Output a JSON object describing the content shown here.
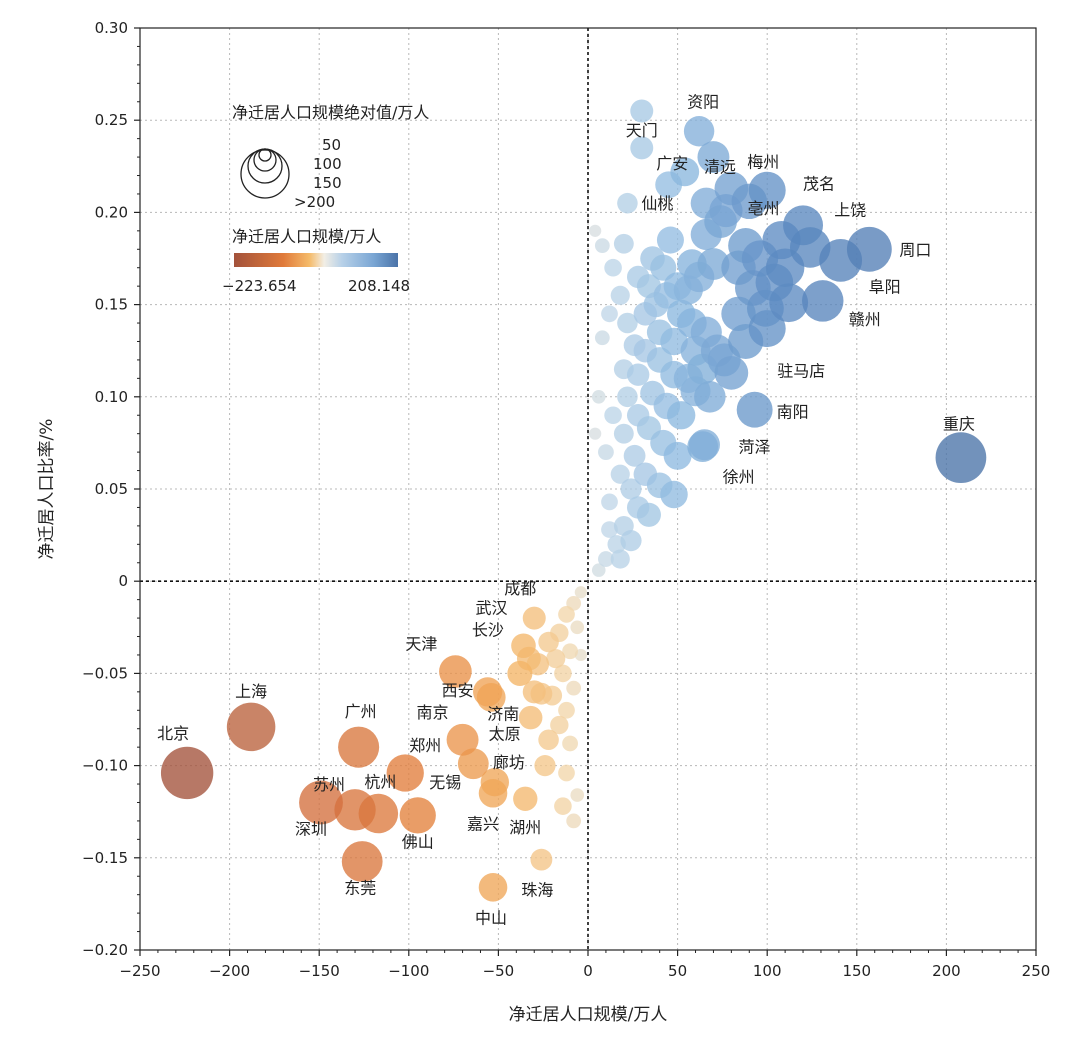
{
  "chart_data": {
    "type": "scatter",
    "xlabel": "净迁居人口规模/万人",
    "ylabel": "净迁居人口比率/%",
    "xlim": [
      -250,
      250
    ],
    "ylim": [
      -0.2,
      0.3
    ],
    "xticks": [
      "−250",
      "−200",
      "−150",
      "−100",
      "−50",
      "0",
      "50",
      "100",
      "150",
      "200",
      "250"
    ],
    "yticks": [
      "0.30",
      "0.25",
      "0.20",
      "0.15",
      "0.10",
      "0.05",
      "0",
      "−0.05",
      "−0.10",
      "−0.15",
      "−0.20"
    ],
    "grid": "dotted",
    "legend": {
      "size_title": "净迁居人口规模绝对值/万人",
      "size_values": [
        "50",
        "100",
        "150",
        ">200"
      ],
      "color_title": "净迁居人口规模/万人",
      "color_min": "−223.654",
      "color_max": "208.148",
      "colors": [
        "#a3523b",
        "#e07a3a",
        "#f5bb6a",
        "#f2eee5",
        "#b6d0e8",
        "#7aa6d4",
        "#4a73a8"
      ]
    },
    "labeled_points": [
      {
        "name": "北京",
        "x": -223.7,
        "y": -0.104
      },
      {
        "name": "上海",
        "x": -188,
        "y": -0.079
      },
      {
        "name": "广州",
        "x": -128,
        "y": -0.09
      },
      {
        "name": "郑州",
        "x": -102,
        "y": -0.104
      },
      {
        "name": "苏州",
        "x": -130,
        "y": -0.124
      },
      {
        "name": "杭州",
        "x": -117,
        "y": -0.126
      },
      {
        "name": "深圳",
        "x": -149,
        "y": -0.12
      },
      {
        "name": "佛山",
        "x": -95,
        "y": -0.127
      },
      {
        "name": "东莞",
        "x": -126,
        "y": -0.152
      },
      {
        "name": "天津",
        "x": -74,
        "y": -0.049
      },
      {
        "name": "西安",
        "x": -56,
        "y": -0.06
      },
      {
        "name": "南京",
        "x": -70,
        "y": -0.086
      },
      {
        "name": "无锡",
        "x": -64,
        "y": -0.099
      },
      {
        "name": "长沙",
        "x": -38,
        "y": -0.05
      },
      {
        "name": "武汉",
        "x": -36,
        "y": -0.035
      },
      {
        "name": "成都",
        "x": -30,
        "y": -0.02
      },
      {
        "name": "济南",
        "x": -54,
        "y": -0.063
      },
      {
        "name": "太原",
        "x": -32,
        "y": -0.074
      },
      {
        "name": "廊坊",
        "x": -52,
        "y": -0.109
      },
      {
        "name": "嘉兴",
        "x": -53,
        "y": -0.115
      },
      {
        "name": "湖州",
        "x": -35,
        "y": -0.118
      },
      {
        "name": "中山",
        "x": -53,
        "y": -0.166
      },
      {
        "name": "珠海",
        "x": -26,
        "y": -0.151
      },
      {
        "name": "资阳",
        "x": 62,
        "y": 0.244
      },
      {
        "name": "天门",
        "x": 30,
        "y": 0.235
      },
      {
        "name": "仙桃",
        "x": 22,
        "y": 0.205
      },
      {
        "name": "广安",
        "x": 66,
        "y": 0.205
      },
      {
        "name": "清远",
        "x": 77,
        "y": 0.201
      },
      {
        "name": "梅州",
        "x": 90,
        "y": 0.206
      },
      {
        "name": "亳州",
        "x": 108,
        "y": 0.185
      },
      {
        "name": "茂名",
        "x": 120,
        "y": 0.193
      },
      {
        "name": "上饶",
        "x": 124,
        "y": 0.181
      },
      {
        "name": "周口",
        "x": 157,
        "y": 0.18
      },
      {
        "name": "阜阳",
        "x": 141,
        "y": 0.174
      },
      {
        "name": "赣州",
        "x": 131,
        "y": 0.152
      },
      {
        "name": "驻马店",
        "x": 100,
        "y": 0.137
      },
      {
        "name": "南阳",
        "x": 93,
        "y": 0.093
      },
      {
        "name": "菏泽",
        "x": 65,
        "y": 0.074
      },
      {
        "name": "徐州",
        "x": 64,
        "y": 0.073
      },
      {
        "name": "重庆",
        "x": 208.1,
        "y": 0.067
      }
    ],
    "other_points": [
      [
        30,
        0.255
      ],
      [
        54,
        0.222
      ],
      [
        70,
        0.23
      ],
      [
        45,
        0.215
      ],
      [
        80,
        0.213
      ],
      [
        100,
        0.212
      ],
      [
        74,
        0.195
      ],
      [
        88,
        0.182
      ],
      [
        96,
        0.175
      ],
      [
        110,
        0.17
      ],
      [
        104,
        0.162
      ],
      [
        84,
        0.17
      ],
      [
        92,
        0.159
      ],
      [
        112,
        0.151
      ],
      [
        99,
        0.148
      ],
      [
        70,
        0.172
      ],
      [
        62,
        0.165
      ],
      [
        56,
        0.158
      ],
      [
        50,
        0.16
      ],
      [
        44,
        0.155
      ],
      [
        38,
        0.15
      ],
      [
        32,
        0.145
      ],
      [
        40,
        0.135
      ],
      [
        48,
        0.13
      ],
      [
        58,
        0.14
      ],
      [
        66,
        0.135
      ],
      [
        72,
        0.125
      ],
      [
        64,
        0.115
      ],
      [
        56,
        0.11
      ],
      [
        48,
        0.112
      ],
      [
        40,
        0.12
      ],
      [
        32,
        0.125
      ],
      [
        28,
        0.112
      ],
      [
        36,
        0.102
      ],
      [
        44,
        0.095
      ],
      [
        52,
        0.09
      ],
      [
        60,
        0.103
      ],
      [
        68,
        0.1
      ],
      [
        80,
        0.113
      ],
      [
        88,
        0.13
      ],
      [
        28,
        0.09
      ],
      [
        34,
        0.083
      ],
      [
        42,
        0.075
      ],
      [
        50,
        0.068
      ],
      [
        26,
        0.068
      ],
      [
        32,
        0.058
      ],
      [
        40,
        0.052
      ],
      [
        48,
        0.047
      ],
      [
        24,
        0.05
      ],
      [
        28,
        0.04
      ],
      [
        34,
        0.036
      ],
      [
        20,
        0.03
      ],
      [
        24,
        0.022
      ],
      [
        16,
        0.02
      ],
      [
        12,
        0.028
      ],
      [
        18,
        0.012
      ],
      [
        10,
        0.012
      ],
      [
        6,
        0.006
      ],
      [
        12,
        0.043
      ],
      [
        18,
        0.058
      ],
      [
        20,
        0.08
      ],
      [
        22,
        0.1
      ],
      [
        20,
        0.115
      ],
      [
        26,
        0.128
      ],
      [
        22,
        0.14
      ],
      [
        18,
        0.155
      ],
      [
        14,
        0.17
      ],
      [
        8,
        0.182
      ],
      [
        4,
        0.19
      ],
      [
        12,
        0.145
      ],
      [
        8,
        0.132
      ],
      [
        6,
        0.1
      ],
      [
        4,
        0.08
      ],
      [
        10,
        0.07
      ],
      [
        14,
        0.09
      ],
      [
        36,
        0.175
      ],
      [
        28,
        0.165
      ],
      [
        20,
        0.183
      ],
      [
        46,
        0.185
      ],
      [
        84,
        0.145
      ],
      [
        76,
        0.12
      ],
      [
        60,
        0.125
      ],
      [
        52,
        0.145
      ],
      [
        42,
        0.17
      ],
      [
        34,
        0.16
      ],
      [
        58,
        0.172
      ],
      [
        66,
        0.188
      ],
      [
        -4,
        -0.006
      ],
      [
        -8,
        -0.012
      ],
      [
        -6,
        -0.025
      ],
      [
        -12,
        -0.018
      ],
      [
        -16,
        -0.028
      ],
      [
        -10,
        -0.038
      ],
      [
        -4,
        -0.04
      ],
      [
        -18,
        -0.042
      ],
      [
        -22,
        -0.033
      ],
      [
        -14,
        -0.05
      ],
      [
        -8,
        -0.058
      ],
      [
        -20,
        -0.062
      ],
      [
        -12,
        -0.07
      ],
      [
        -26,
        -0.061
      ],
      [
        -16,
        -0.078
      ],
      [
        -10,
        -0.088
      ],
      [
        -22,
        -0.086
      ],
      [
        -12,
        -0.104
      ],
      [
        -6,
        -0.116
      ],
      [
        -14,
        -0.122
      ],
      [
        -8,
        -0.13
      ],
      [
        -24,
        -0.1
      ],
      [
        -30,
        -0.06
      ],
      [
        -28,
        -0.045
      ],
      [
        -33,
        -0.042
      ]
    ]
  }
}
